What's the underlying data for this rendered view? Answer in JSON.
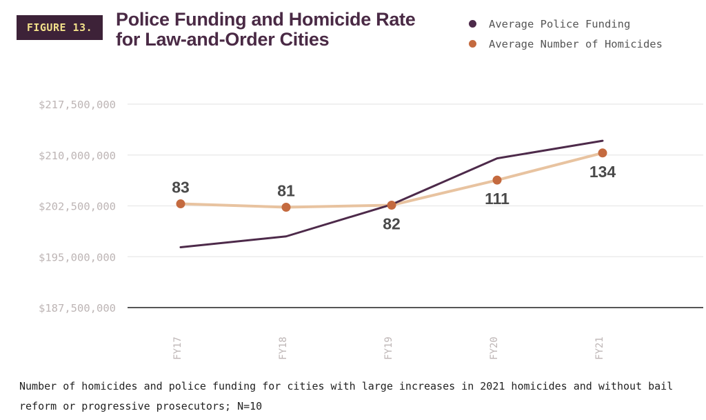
{
  "figure_label": "FIGURE 13.",
  "title": "Police Funding and Homicide Rate for Law-and-Order Cities",
  "caption": "Number of homicides and police funding for cities with large increases in 2021 homicides and without bail reform or progressive prosecutors; N=10",
  "colors": {
    "badge_bg": "#3d2238",
    "badge_text": "#f2e08a",
    "title": "#4a2a45",
    "funding": "#4d2a4a",
    "homicides_line": "#e8c3a0",
    "homicides_marker": "#c46a3f",
    "axis_text": "#bdb5b5",
    "grid": "#ebebeb",
    "axis": "#555555"
  },
  "chart_data": {
    "type": "line",
    "categories": [
      "FY17",
      "FY18",
      "FY19",
      "FY20",
      "FY21"
    ],
    "ylim": [
      187500000,
      217500000
    ],
    "yticks": [
      187500000,
      195000000,
      202500000,
      210000000,
      217500000
    ],
    "ytick_labels": [
      "$187,500,000",
      "$195,000,000",
      "$202,500,000",
      "$210,000,000",
      "$217,500,000"
    ],
    "legend_position": "top-right",
    "series": [
      {
        "name": "Average Police Funding",
        "values": [
          196400000,
          198000000,
          202700000,
          209500000,
          212100000
        ]
      },
      {
        "name": "Average Number of Homicides",
        "values": [
          83,
          81,
          82,
          111,
          134
        ],
        "plotted_on_funding_axis": [
          202800000,
          202300000,
          202600000,
          206300000,
          210300000
        ],
        "labels": [
          "83",
          "81",
          "82",
          "111",
          "134"
        ],
        "label_placement": [
          "above",
          "above",
          "below",
          "below",
          "below"
        ]
      }
    ]
  }
}
